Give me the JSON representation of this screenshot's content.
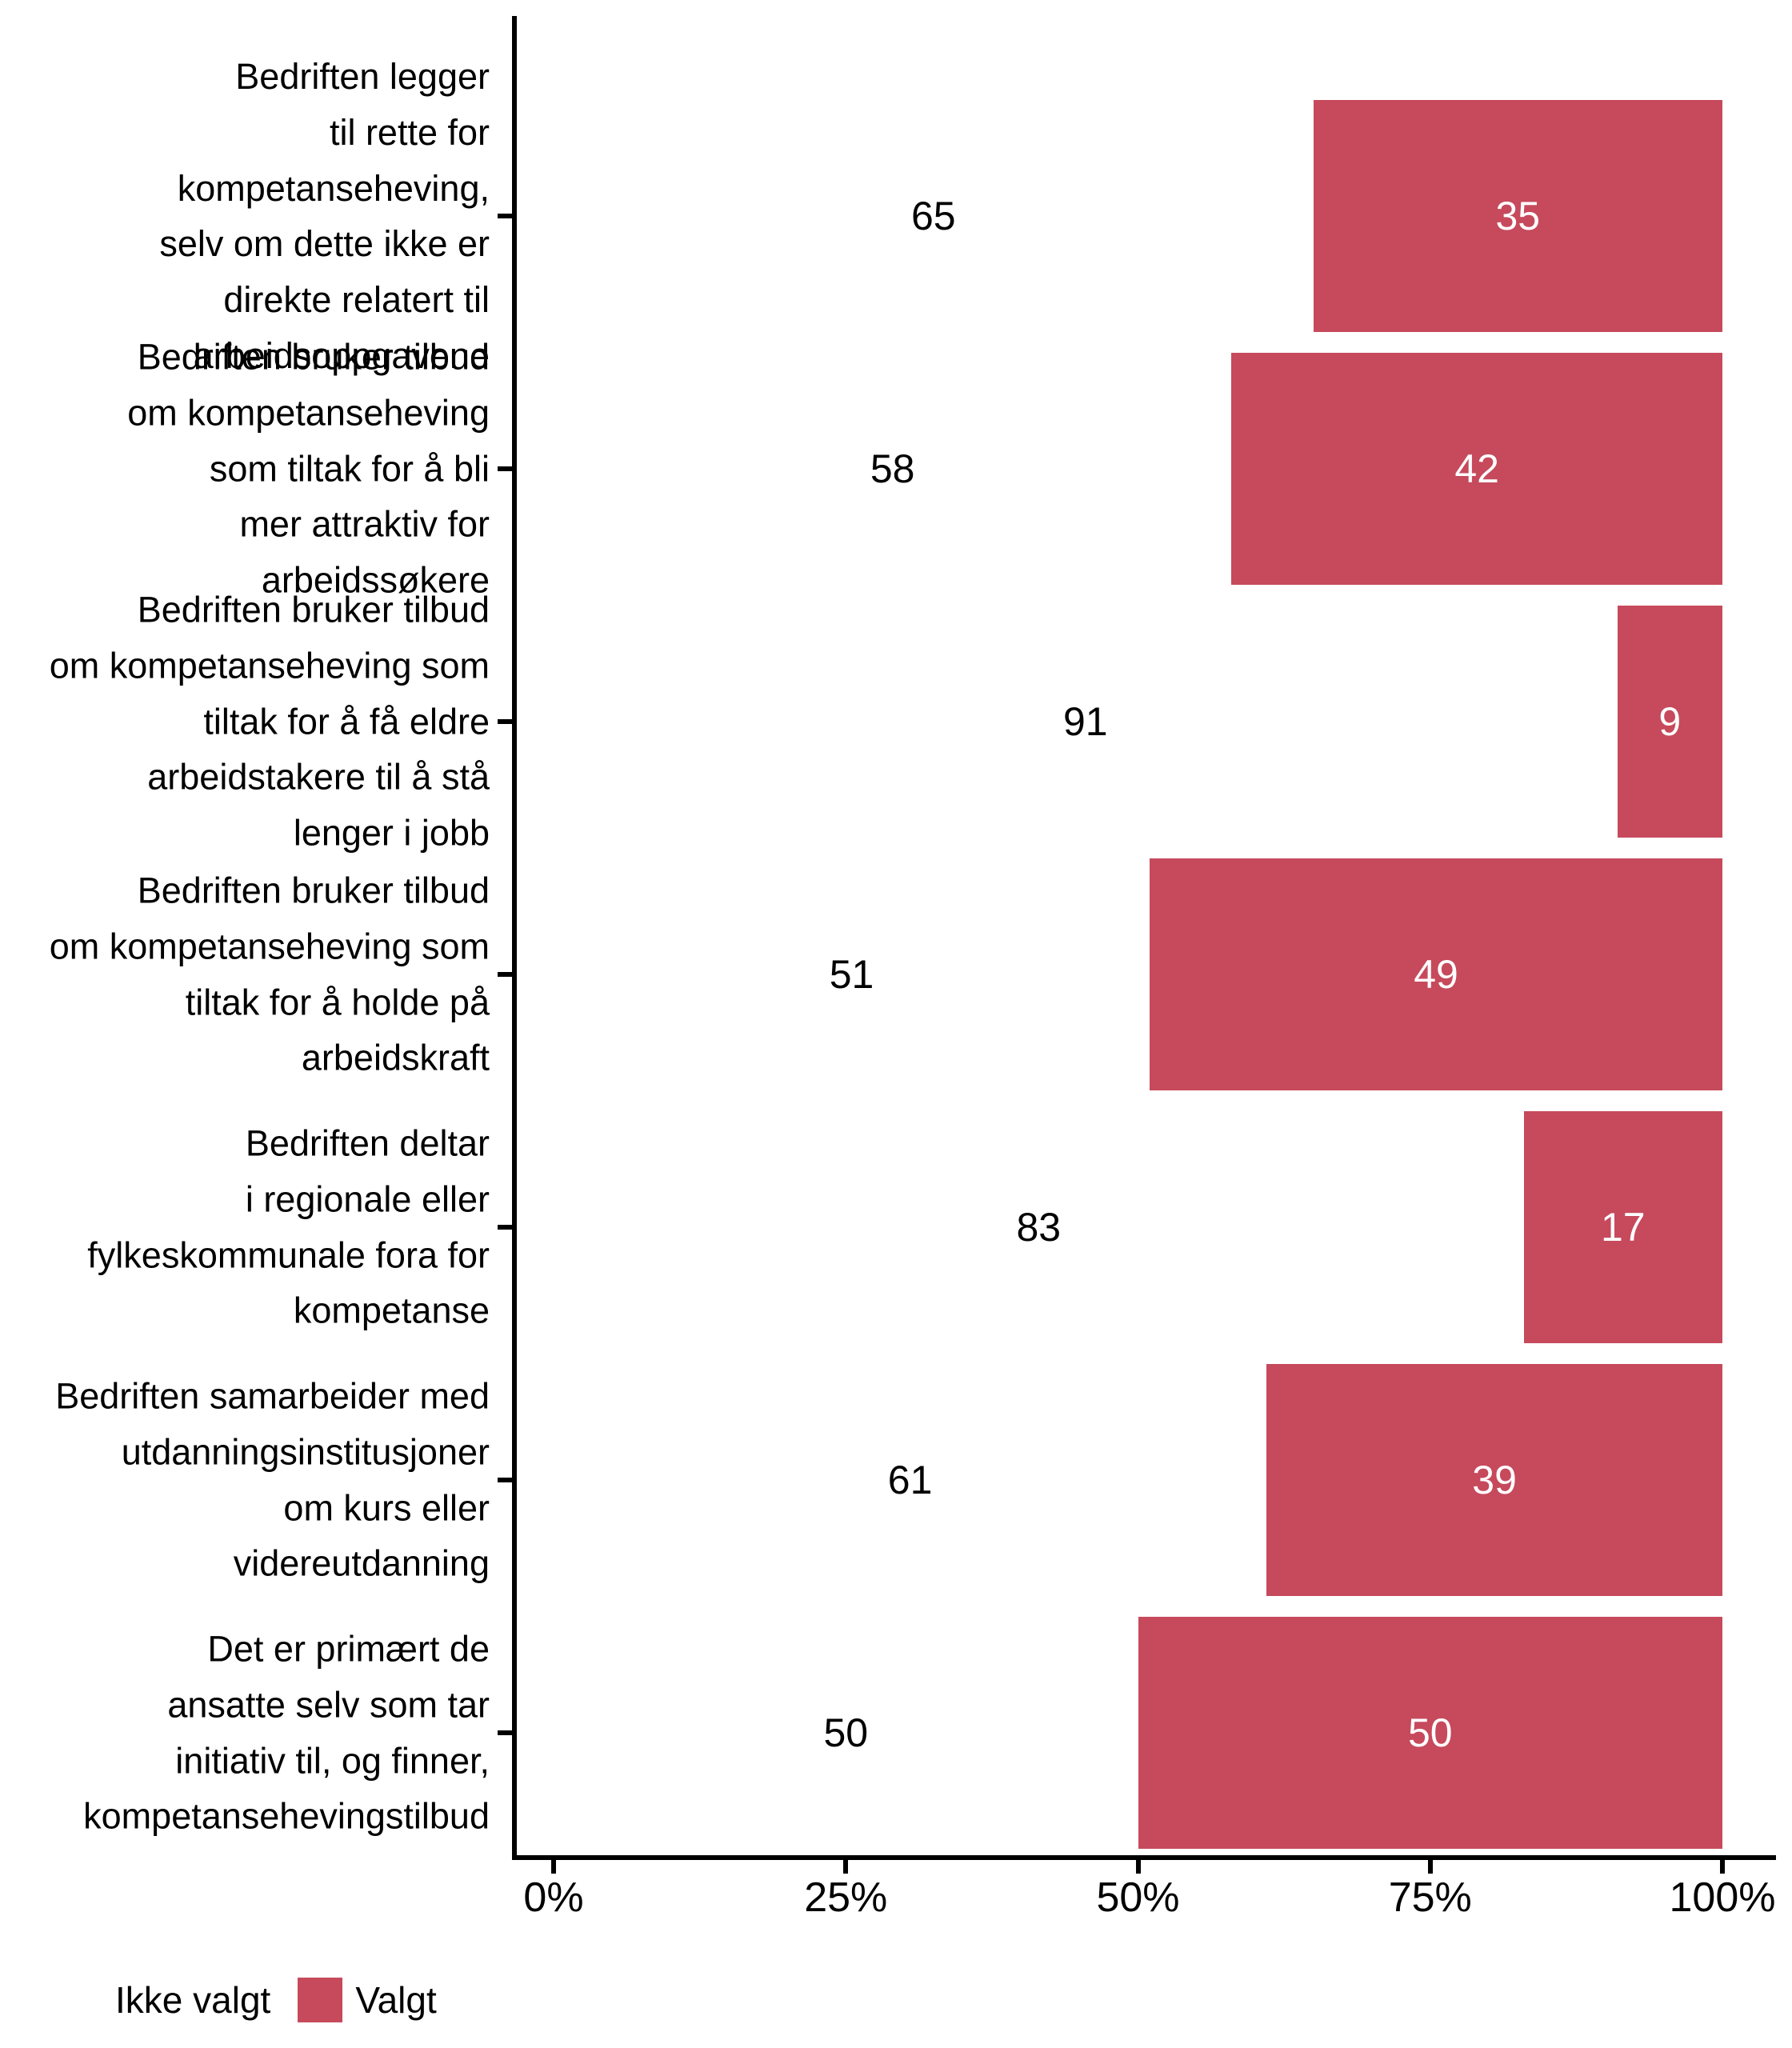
{
  "chart_data": {
    "type": "bar",
    "orientation": "horizontal",
    "stacked": true,
    "title": "",
    "xlabel": "",
    "ylabel": "",
    "xlim": [
      0,
      100
    ],
    "x_ticks": [
      {
        "label": "0%",
        "value": 0
      },
      {
        "label": "25%",
        "value": 25
      },
      {
        "label": "50%",
        "value": 50
      },
      {
        "label": "75%",
        "value": 75
      },
      {
        "label": "100%",
        "value": 100
      }
    ],
    "grid": false,
    "legend_position": "bottom-left",
    "categories": [
      "Bedriften legger\ntil rette for\nkompetanseheving,\nselv om dette ikke er\ndirekte relatert til\narbeidsoppgavene",
      "Bedriften bruker tilbud\nom kompetanseheving\nsom tiltak for å bli\nmer attraktiv for\narbeidssøkere",
      "Bedriften bruker tilbud\nom kompetanseheving som\ntiltak for å få eldre\narbeidstakere til å stå\nlenger i jobb",
      "Bedriften bruker tilbud\nom kompetanseheving som\ntiltak for å holde på\narbeidskraft",
      "Bedriften deltar\ni regionale eller\nfylkeskommunale fora for\nkompetanse",
      "Bedriften samarbeider med\nutdanningsinstitusjoner\nom kurs eller\nvidereutdanning",
      "Det er primært de\nansatte selv som tar\ninitiativ til, og finner,\nkompetansehevingstilbud"
    ],
    "series": [
      {
        "name": "Ikke valgt",
        "color": "#FFFFFF",
        "text_color": "#000000",
        "values": [
          65,
          58,
          91,
          51,
          83,
          61,
          50
        ]
      },
      {
        "name": "Valgt",
        "color": "#C64A5C",
        "text_color": "#FFFFFF",
        "values": [
          35,
          42,
          9,
          49,
          17,
          39,
          50
        ]
      }
    ]
  },
  "legend": {
    "items": [
      {
        "label": "Ikke valgt",
        "color": "#FFFFFF"
      },
      {
        "label": "Valgt",
        "color": "#C64A5C"
      }
    ]
  },
  "colors": {
    "selected_bar": "#C64A5C",
    "not_selected_bar": "#FFFFFF",
    "axis": "#000000",
    "text": "#000000"
  }
}
